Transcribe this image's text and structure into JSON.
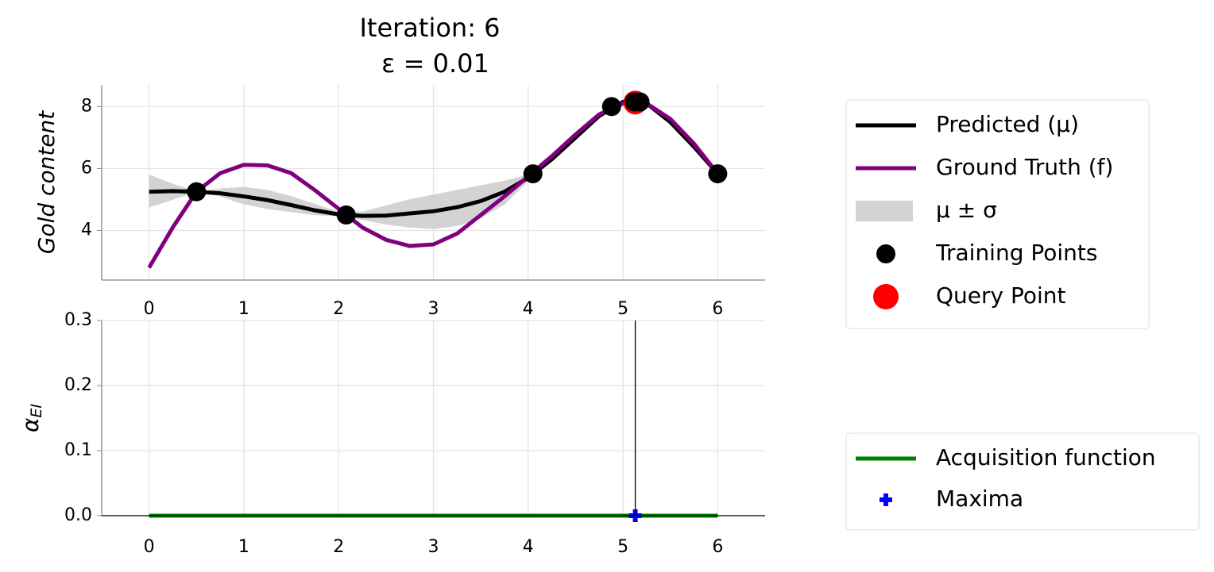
{
  "chart_data": [
    {
      "type": "line",
      "title": "Iteration: 6",
      "subtitle": "ε = 0.01",
      "ylabel": "Gold content",
      "x": [
        0,
        0.25,
        0.5,
        0.75,
        1.0,
        1.25,
        1.5,
        1.75,
        2.0,
        2.25,
        2.5,
        2.75,
        3.0,
        3.25,
        3.5,
        3.75,
        4.0,
        4.25,
        4.5,
        4.75,
        5.0,
        5.25,
        5.5,
        5.75,
        6.0
      ],
      "xlim": [
        -0.5,
        6.5
      ],
      "xticks": [
        0,
        1,
        2,
        3,
        4,
        5,
        6
      ],
      "ylim": [
        2.4,
        8.7
      ],
      "yticks": [
        4,
        6,
        8
      ],
      "grid": true,
      "legend": "outside-right",
      "series": [
        {
          "name": "Predicted (μ)",
          "color": "#000000",
          "kind": "line",
          "values": [
            5.25,
            5.27,
            5.25,
            5.2,
            5.1,
            4.98,
            4.82,
            4.65,
            4.52,
            4.47,
            4.48,
            4.55,
            4.62,
            4.75,
            4.95,
            5.25,
            5.7,
            6.3,
            7.0,
            7.7,
            8.15,
            8.1,
            7.5,
            6.7,
            5.83
          ]
        },
        {
          "name": "Ground Truth (f)",
          "color": "#800080",
          "kind": "line",
          "values": [
            2.8,
            4.1,
            5.25,
            5.85,
            6.12,
            6.1,
            5.85,
            5.3,
            4.7,
            4.1,
            3.7,
            3.5,
            3.55,
            3.9,
            4.5,
            5.1,
            5.75,
            6.4,
            7.1,
            7.75,
            8.1,
            8.1,
            7.6,
            6.8,
            5.83
          ]
        },
        {
          "name": "μ ± σ",
          "color": "#d3d3d3",
          "kind": "band",
          "lower": [
            4.75,
            5.0,
            5.25,
            5.1,
            4.85,
            4.7,
            4.6,
            4.5,
            4.47,
            4.35,
            4.2,
            4.1,
            4.05,
            4.15,
            4.4,
            4.85,
            5.6,
            6.25,
            6.95,
            7.65,
            8.1,
            8.05,
            7.45,
            6.65,
            5.83
          ],
          "upper": [
            5.8,
            5.5,
            5.25,
            5.35,
            5.4,
            5.3,
            5.1,
            4.85,
            4.6,
            4.6,
            4.8,
            5.0,
            5.15,
            5.3,
            5.45,
            5.6,
            5.8,
            6.35,
            7.05,
            7.75,
            8.2,
            8.15,
            7.55,
            6.75,
            5.83
          ]
        },
        {
          "name": "Training Points",
          "color": "#000000",
          "kind": "scatter",
          "x": [
            0.5,
            2.08,
            4.05,
            4.88,
            5.12,
            5.18,
            6.0
          ],
          "values": [
            5.25,
            4.5,
            5.83,
            8.0,
            8.15,
            8.15,
            5.83
          ]
        },
        {
          "name": "Query Point",
          "color": "#ff0000",
          "kind": "scatter",
          "x": [
            5.13
          ],
          "values": [
            8.13
          ]
        }
      ]
    },
    {
      "type": "line",
      "ylabel": "α",
      "ylabel_subscript": "EI",
      "x": [
        0,
        1,
        2,
        3,
        4,
        5,
        6
      ],
      "xlim": [
        -0.5,
        6.5
      ],
      "xticks": [
        0,
        1,
        2,
        3,
        4,
        5,
        6
      ],
      "ylim": [
        0,
        0.3
      ],
      "yticks": [
        {
          "value": 0,
          "label": "0.0"
        },
        0.1,
        0.2,
        0.3
      ],
      "grid": true,
      "legend": "outside-right",
      "vline": 5.13,
      "series": [
        {
          "name": "Acquisition function",
          "color": "#008000",
          "kind": "line",
          "values": [
            0,
            0,
            0,
            0,
            0,
            0,
            0
          ]
        },
        {
          "name": "Maxima",
          "color": "#0000ff",
          "kind": "plus",
          "x": [
            5.13
          ],
          "values": [
            0
          ]
        }
      ]
    }
  ]
}
